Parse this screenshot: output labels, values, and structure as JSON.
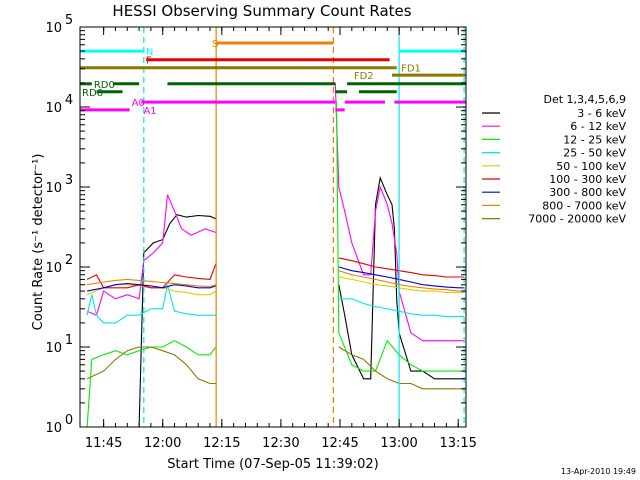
{
  "chart_data": {
    "type": "line",
    "title": "HESSI Observing Summary Count Rates",
    "xlabel": "Start Time (07-Sep-05 11:39:02)",
    "ylabel": "Count Rate (s⁻¹ detector⁻¹)",
    "x_range_min": [
      11.65,
      13.283
    ],
    "y_log_range": [
      1,
      100000
    ],
    "x_ticks": [
      {
        "t": 11.75,
        "label": "11:45"
      },
      {
        "t": 12.0,
        "label": "12:00"
      },
      {
        "t": 12.25,
        "label": "12:15"
      },
      {
        "t": 12.5,
        "label": "12:30"
      },
      {
        "t": 12.75,
        "label": "12:45"
      },
      {
        "t": 13.0,
        "label": "13:00"
      },
      {
        "t": 13.25,
        "label": "13:15"
      }
    ],
    "y_ticks": [
      {
        "v": 1,
        "base": "10",
        "exp": "0"
      },
      {
        "v": 10,
        "base": "10",
        "exp": "1"
      },
      {
        "v": 100,
        "base": "10",
        "exp": "2"
      },
      {
        "v": 1000,
        "base": "10",
        "exp": "3"
      },
      {
        "v": 10000,
        "base": "10",
        "exp": "4"
      },
      {
        "v": 100000,
        "base": "10",
        "exp": "5"
      }
    ],
    "legend_title": "Det 1,3,4,5,6,9",
    "legend_placement": "right",
    "gaps": [
      [
        12.226,
        12.722
      ]
    ],
    "series": [
      {
        "name": "3 - 6 keV",
        "color": "#000000",
        "points": [
          [
            11.68,
            1.0
          ],
          [
            11.75,
            1.0
          ],
          [
            11.85,
            1.0
          ],
          [
            11.9,
            1.0
          ],
          [
            11.92,
            150
          ],
          [
            11.96,
            200
          ],
          [
            12.0,
            220
          ],
          [
            12.03,
            350
          ],
          [
            12.06,
            450
          ],
          [
            12.1,
            420
          ],
          [
            12.15,
            440
          ],
          [
            12.2,
            430
          ],
          [
            12.225,
            400
          ],
          [
            12.745,
            60
          ],
          [
            12.77,
            25
          ],
          [
            12.8,
            8
          ],
          [
            12.85,
            4
          ],
          [
            12.88,
            4
          ],
          [
            12.9,
            600
          ],
          [
            12.92,
            1300
          ],
          [
            12.95,
            800
          ],
          [
            12.97,
            600
          ],
          [
            12.98,
            300
          ],
          [
            12.99,
            40
          ],
          [
            13.0,
            15
          ],
          [
            13.05,
            5
          ],
          [
            13.1,
            5
          ],
          [
            13.15,
            4
          ],
          [
            13.2,
            4
          ],
          [
            13.25,
            4
          ],
          [
            13.275,
            4
          ]
        ]
      },
      {
        "name": "6 - 12 keV",
        "color": "#ff00ff",
        "points": [
          [
            11.68,
            28
          ],
          [
            11.72,
            25
          ],
          [
            11.75,
            50
          ],
          [
            11.8,
            40
          ],
          [
            11.85,
            45
          ],
          [
            11.9,
            40
          ],
          [
            11.92,
            120
          ],
          [
            11.96,
            150
          ],
          [
            12.0,
            200
          ],
          [
            12.02,
            800
          ],
          [
            12.05,
            500
          ],
          [
            12.08,
            300
          ],
          [
            12.12,
            250
          ],
          [
            12.18,
            300
          ],
          [
            12.225,
            270
          ],
          [
            12.73,
            20000
          ],
          [
            12.745,
            1000
          ],
          [
            12.77,
            500
          ],
          [
            12.8,
            200
          ],
          [
            12.85,
            80
          ],
          [
            12.88,
            80
          ],
          [
            12.9,
            500
          ],
          [
            12.92,
            1000
          ],
          [
            12.95,
            600
          ],
          [
            12.97,
            350
          ],
          [
            12.99,
            150
          ],
          [
            13.0,
            50
          ],
          [
            13.05,
            15
          ],
          [
            13.1,
            12
          ],
          [
            13.15,
            12
          ],
          [
            13.2,
            12
          ],
          [
            13.25,
            12
          ],
          [
            13.275,
            12
          ]
        ]
      },
      {
        "name": "12 - 25 keV",
        "color": "#00ee00",
        "points": [
          [
            11.68,
            1.0
          ],
          [
            11.7,
            7
          ],
          [
            11.75,
            8
          ],
          [
            11.8,
            9
          ],
          [
            11.85,
            8
          ],
          [
            11.9,
            9
          ],
          [
            11.95,
            10
          ],
          [
            12.0,
            10
          ],
          [
            12.05,
            12
          ],
          [
            12.1,
            10
          ],
          [
            12.15,
            8
          ],
          [
            12.2,
            8
          ],
          [
            12.225,
            10
          ],
          [
            12.735,
            12000
          ],
          [
            12.745,
            15
          ],
          [
            12.8,
            6
          ],
          [
            12.85,
            5
          ],
          [
            12.9,
            5
          ],
          [
            12.95,
            12
          ],
          [
            13.0,
            8
          ],
          [
            13.05,
            6
          ],
          [
            13.1,
            5
          ],
          [
            13.15,
            5
          ],
          [
            13.2,
            5
          ],
          [
            13.25,
            5
          ],
          [
            13.275,
            5
          ]
        ]
      },
      {
        "name": "25 - 50 keV",
        "color": "#00e8e8",
        "points": [
          [
            11.68,
            25
          ],
          [
            11.7,
            45
          ],
          [
            11.72,
            25
          ],
          [
            11.75,
            20
          ],
          [
            11.8,
            20
          ],
          [
            11.85,
            25
          ],
          [
            11.9,
            25
          ],
          [
            11.95,
            30
          ],
          [
            12.0,
            30
          ],
          [
            12.02,
            60
          ],
          [
            12.05,
            28
          ],
          [
            12.1,
            26
          ],
          [
            12.15,
            25
          ],
          [
            12.2,
            25
          ],
          [
            12.225,
            25
          ],
          [
            12.745,
            40
          ],
          [
            12.8,
            40
          ],
          [
            12.85,
            35
          ],
          [
            12.9,
            32
          ],
          [
            12.95,
            30
          ],
          [
            13.0,
            28
          ],
          [
            13.05,
            26
          ],
          [
            13.1,
            25
          ],
          [
            13.15,
            25
          ],
          [
            13.2,
            24
          ],
          [
            13.25,
            24
          ],
          [
            13.275,
            24
          ]
        ]
      },
      {
        "name": "50 - 100 keV",
        "color": "#e8c800",
        "points": [
          [
            11.68,
            45
          ],
          [
            11.75,
            55
          ],
          [
            11.8,
            60
          ],
          [
            11.85,
            60
          ],
          [
            11.9,
            58
          ],
          [
            11.95,
            55
          ],
          [
            12.0,
            55
          ],
          [
            12.05,
            50
          ],
          [
            12.1,
            48
          ],
          [
            12.15,
            45
          ],
          [
            12.2,
            45
          ],
          [
            12.225,
            50
          ],
          [
            12.745,
            75
          ],
          [
            12.8,
            70
          ],
          [
            12.85,
            65
          ],
          [
            12.9,
            60
          ],
          [
            12.95,
            58
          ],
          [
            13.0,
            55
          ],
          [
            13.05,
            52
          ],
          [
            13.1,
            50
          ],
          [
            13.15,
            50
          ],
          [
            13.2,
            48
          ],
          [
            13.25,
            48
          ],
          [
            13.275,
            48
          ]
        ]
      },
      {
        "name": "100 - 300 keV",
        "color": "#e80000",
        "points": [
          [
            11.68,
            70
          ],
          [
            11.72,
            80
          ],
          [
            11.75,
            55
          ],
          [
            11.8,
            55
          ],
          [
            11.85,
            55
          ],
          [
            11.9,
            60
          ],
          [
            11.95,
            55
          ],
          [
            12.0,
            55
          ],
          [
            12.05,
            80
          ],
          [
            12.1,
            75
          ],
          [
            12.15,
            72
          ],
          [
            12.2,
            70
          ],
          [
            12.225,
            110
          ],
          [
            12.745,
            130
          ],
          [
            12.8,
            120
          ],
          [
            12.85,
            110
          ],
          [
            12.9,
            100
          ],
          [
            12.95,
            95
          ],
          [
            13.0,
            90
          ],
          [
            13.05,
            85
          ],
          [
            13.1,
            80
          ],
          [
            13.15,
            78
          ],
          [
            13.2,
            75
          ],
          [
            13.25,
            75
          ],
          [
            13.275,
            75
          ]
        ]
      },
      {
        "name": "300 - 800 keV",
        "color": "#0000d0",
        "points": [
          [
            11.68,
            50
          ],
          [
            11.75,
            55
          ],
          [
            11.8,
            60
          ],
          [
            11.85,
            62
          ],
          [
            11.9,
            60
          ],
          [
            11.95,
            58
          ],
          [
            12.0,
            55
          ],
          [
            12.05,
            60
          ],
          [
            12.1,
            58
          ],
          [
            12.15,
            55
          ],
          [
            12.2,
            55
          ],
          [
            12.225,
            58
          ],
          [
            12.745,
            100
          ],
          [
            12.8,
            90
          ],
          [
            12.85,
            85
          ],
          [
            12.9,
            80
          ],
          [
            12.95,
            75
          ],
          [
            13.0,
            70
          ],
          [
            13.05,
            65
          ],
          [
            13.1,
            60
          ],
          [
            13.15,
            58
          ],
          [
            13.2,
            56
          ],
          [
            13.25,
            55
          ],
          [
            13.275,
            55
          ]
        ]
      },
      {
        "name": "800 - 7000 keV",
        "color": "#f08000",
        "points": [
          [
            11.68,
            60
          ],
          [
            11.75,
            65
          ],
          [
            11.8,
            68
          ],
          [
            11.85,
            70
          ],
          [
            11.9,
            68
          ],
          [
            11.95,
            66
          ],
          [
            12.0,
            64
          ],
          [
            12.05,
            62
          ],
          [
            12.1,
            60
          ],
          [
            12.15,
            58
          ],
          [
            12.2,
            57
          ],
          [
            12.225,
            60
          ],
          [
            12.745,
            90
          ],
          [
            12.8,
            80
          ],
          [
            12.85,
            75
          ],
          [
            12.9,
            70
          ],
          [
            12.95,
            65
          ],
          [
            13.0,
            60
          ],
          [
            13.05,
            57
          ],
          [
            13.1,
            55
          ],
          [
            13.15,
            53
          ],
          [
            13.2,
            52
          ],
          [
            13.25,
            50
          ],
          [
            13.275,
            50
          ]
        ]
      },
      {
        "name": "7000 - 20000 keV",
        "color": "#8c7800",
        "points": [
          [
            11.68,
            4
          ],
          [
            11.75,
            5
          ],
          [
            11.8,
            7
          ],
          [
            11.85,
            9
          ],
          [
            11.9,
            10
          ],
          [
            11.95,
            10
          ],
          [
            12.0,
            9
          ],
          [
            12.05,
            8
          ],
          [
            12.1,
            6
          ],
          [
            12.15,
            4
          ],
          [
            12.2,
            3.5
          ],
          [
            12.225,
            3.5
          ],
          [
            12.745,
            10
          ],
          [
            12.8,
            8
          ],
          [
            12.85,
            7
          ],
          [
            12.9,
            5
          ],
          [
            12.95,
            4
          ],
          [
            13.0,
            3.5
          ],
          [
            13.05,
            3.5
          ],
          [
            13.1,
            3
          ],
          [
            13.15,
            3
          ],
          [
            13.2,
            3
          ],
          [
            13.25,
            3
          ],
          [
            13.275,
            3
          ]
        ]
      }
    ],
    "flags": [
      {
        "label": "N",
        "color": "#00ffff",
        "level": 50000,
        "label_at": 11.92,
        "segments": [
          [
            11.65,
            11.92
          ],
          [
            13.0,
            13.283
          ]
        ]
      },
      {
        "label": "S",
        "color": "#f08000",
        "level": 63000,
        "label_at": 12.2,
        "segments": [
          [
            12.226,
            12.722
          ]
        ]
      },
      {
        "label": "F",
        "color": "#e80000",
        "level": 39000,
        "label_at": 11.92,
        "segments": [
          [
            11.93,
            12.96
          ]
        ]
      },
      {
        "label": "FD1",
        "color": "#8c7800",
        "level": 31000,
        "label_at": 13.0,
        "segments": [
          [
            11.65,
            12.99
          ]
        ]
      },
      {
        "label": "FD2",
        "color": "#8c7800",
        "level": 25000,
        "label_at": 12.8,
        "segments": [
          [
            12.97,
            13.283
          ]
        ]
      },
      {
        "label": "RD0",
        "color": "#006400",
        "level": 19500,
        "label_at": 11.7,
        "segments": [
          [
            11.65,
            11.7
          ],
          [
            11.79,
            11.9
          ],
          [
            12.02,
            12.73
          ],
          [
            12.78,
            13.283
          ]
        ]
      },
      {
        "label": "RD6",
        "color": "#006400",
        "level": 15500,
        "label_at": 11.65,
        "segments": [
          [
            11.72,
            11.83
          ],
          [
            12.73,
            12.78
          ],
          [
            12.83,
            12.99
          ]
        ]
      },
      {
        "label": "A0",
        "color": "#ff00ff",
        "level": 11500,
        "label_at": 11.86,
        "segments": [
          [
            11.91,
            12.73
          ],
          [
            12.77,
            12.94
          ],
          [
            12.98,
            13.283
          ]
        ]
      },
      {
        "label": "A1",
        "color": "#ff00ff",
        "level": 9200,
        "label_at": 11.91,
        "segments": [
          [
            11.65,
            11.86
          ],
          [
            12.73,
            12.77
          ]
        ]
      }
    ],
    "vlines": [
      {
        "t": 11.92,
        "color": "#00e8e8",
        "dash": true
      },
      {
        "t": 12.226,
        "color": "#f08000",
        "dash": false
      },
      {
        "t": 12.722,
        "color": "#f08000",
        "dash": true
      },
      {
        "t": 13.0,
        "color": "#00e8e8",
        "dash": false
      },
      {
        "t": 13.275,
        "color": "#00e8e8",
        "dash": true
      }
    ]
  },
  "footer": {
    "date": "13-Apr-2010 19:49"
  }
}
